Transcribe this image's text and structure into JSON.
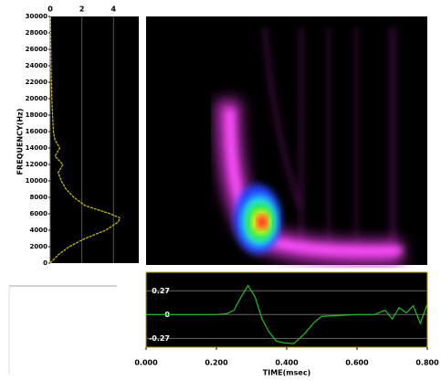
{
  "chart_data": [
    {
      "type": "line",
      "y_label": "FREQUENCY(Hz)",
      "xlim": [
        0,
        5.6
      ],
      "xticks": [
        0,
        2,
        4
      ],
      "ylim": [
        0,
        30000
      ],
      "yticks": [
        0,
        2000,
        4000,
        6000,
        8000,
        10000,
        12000,
        14000,
        16000,
        18000,
        20000,
        22000,
        24000,
        26000,
        28000,
        30000
      ],
      "grid": true,
      "series": [
        {
          "color": "#d8c400",
          "x": [
            0,
            0.5,
            1.2,
            2.2,
            3.5,
            4.3,
            4.4,
            3.8,
            2.2,
            1.5,
            1.0,
            0.7,
            0.5,
            0.8,
            0.3,
            0.6,
            0.3,
            0.2,
            0.15,
            0.1,
            0.05,
            0.02
          ],
          "y": [
            0,
            1000,
            2000,
            3000,
            4000,
            5000,
            5500,
            6000,
            7000,
            8000,
            9000,
            10000,
            11000,
            12000,
            13000,
            14000,
            15000,
            16000,
            18000,
            20000,
            24000,
            30000
          ]
        }
      ]
    },
    {
      "type": "line",
      "x_label": "TIME(msec)",
      "xlim": [
        0,
        0.8
      ],
      "xticks": [
        {
          "value": 0,
          "label": "0.000"
        },
        {
          "value": 0.2,
          "label": "0.200"
        },
        {
          "value": 0.4,
          "label": "0.400"
        },
        {
          "value": 0.6,
          "label": "0.600"
        },
        {
          "value": 0.8,
          "label": "0.800"
        }
      ],
      "ylim": [
        -0.37,
        0.48
      ],
      "yticks": [
        -0.27,
        0,
        0.27
      ],
      "grid": true,
      "series": [
        {
          "color": "#22c022",
          "x": [
            0,
            0.1,
            0.2,
            0.23,
            0.25,
            0.27,
            0.29,
            0.31,
            0.33,
            0.35,
            0.37,
            0.39,
            0.42,
            0.45,
            0.48,
            0.5,
            0.6,
            0.65,
            0.68,
            0.7,
            0.72,
            0.74,
            0.76,
            0.78,
            0.8
          ],
          "values": [
            0,
            0,
            0,
            0.01,
            0.05,
            0.2,
            0.33,
            0.2,
            -0.05,
            -0.2,
            -0.3,
            -0.32,
            -0.33,
            -0.22,
            -0.08,
            -0.02,
            0,
            0,
            0.05,
            -0.05,
            0.08,
            0.02,
            0.1,
            -0.1,
            0.12
          ]
        }
      ]
    }
  ]
}
